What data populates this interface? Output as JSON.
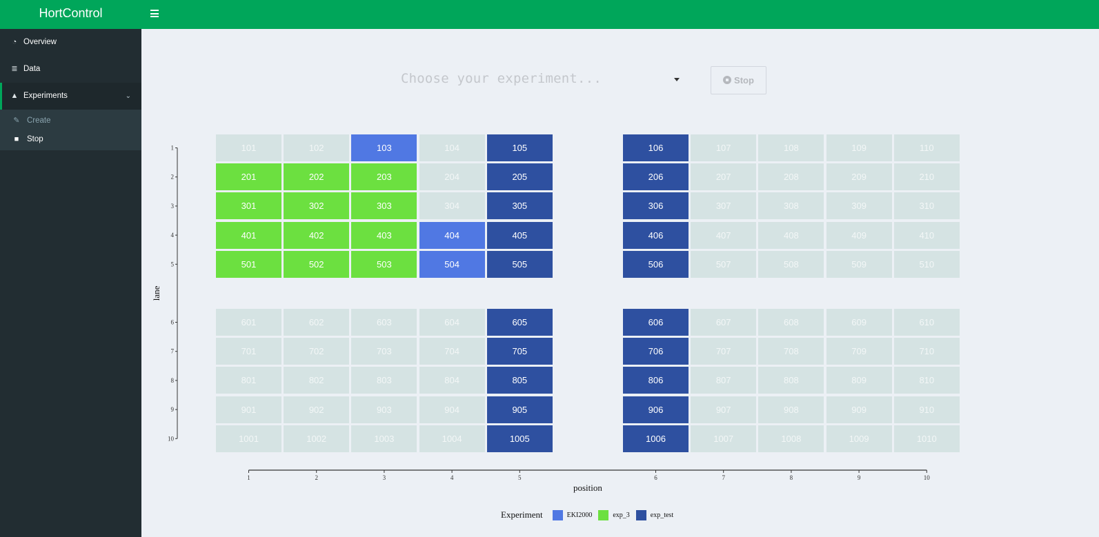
{
  "app": {
    "title": "HortControl"
  },
  "sidebar": {
    "items": [
      {
        "label": "Overview",
        "icon": "dashboard-icon"
      },
      {
        "label": "Data",
        "icon": "database-icon"
      },
      {
        "label": "Experiments",
        "icon": "flask-icon"
      }
    ],
    "experiments_submenu": [
      {
        "label": "Create",
        "icon": "magic-wand-icon"
      },
      {
        "label": "Stop",
        "icon": "stop-square-icon"
      }
    ]
  },
  "controls": {
    "experiment_select_placeholder": "Choose your experiment...",
    "stop_label": "Stop"
  },
  "colors": {
    "header_green": "#00a65a",
    "sidebar_dark": "#222d32",
    "empty_cell": "#d5e3e3",
    "EKI2000": "#5078e3",
    "exp_3": "#6ce040",
    "exp_test": "#2e50a0"
  },
  "chart_data": {
    "type": "heatmap",
    "xlabel": "position",
    "ylabel": "lane",
    "x_ticks": [
      1,
      2,
      3,
      4,
      5,
      6,
      7,
      8,
      9,
      10
    ],
    "y_ticks": [
      1,
      2,
      3,
      4,
      5,
      6,
      7,
      8,
      9,
      10
    ],
    "legend_title": "Experiment",
    "legend": [
      "EKI2000",
      "exp_3",
      "exp_test"
    ],
    "cell_label_rule": "lane*100+position",
    "assignments": {
      "EKI2000": [
        [
          1,
          3
        ],
        [
          4,
          4
        ],
        [
          5,
          4
        ]
      ],
      "exp_3": [
        [
          2,
          1
        ],
        [
          2,
          2
        ],
        [
          2,
          3
        ],
        [
          3,
          1
        ],
        [
          3,
          2
        ],
        [
          3,
          3
        ],
        [
          4,
          1
        ],
        [
          4,
          2
        ],
        [
          4,
          3
        ],
        [
          5,
          1
        ],
        [
          5,
          2
        ],
        [
          5,
          3
        ]
      ],
      "exp_test": [
        [
          1,
          5
        ],
        [
          2,
          5
        ],
        [
          3,
          5
        ],
        [
          4,
          5
        ],
        [
          5,
          5
        ],
        [
          6,
          5
        ],
        [
          7,
          5
        ],
        [
          8,
          5
        ],
        [
          9,
          5
        ],
        [
          10,
          5
        ],
        [
          1,
          6
        ],
        [
          2,
          6
        ],
        [
          3,
          6
        ],
        [
          4,
          6
        ],
        [
          5,
          6
        ],
        [
          6,
          6
        ],
        [
          7,
          6
        ],
        [
          8,
          6
        ],
        [
          9,
          6
        ],
        [
          10,
          6
        ]
      ]
    },
    "legend_position": "bottom",
    "grid": false
  }
}
